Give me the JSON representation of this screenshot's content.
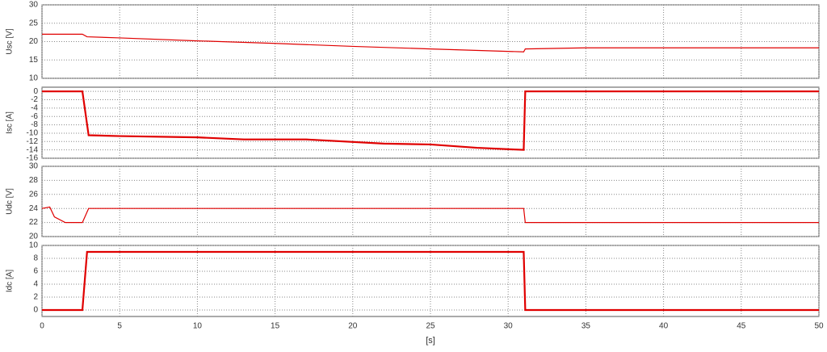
{
  "chart_data": [
    {
      "type": "line",
      "ylabel": "Usc [V]",
      "xlim": [
        0,
        50
      ],
      "xticks": [
        0,
        5,
        10,
        15,
        20,
        25,
        30,
        35,
        40,
        45,
        50
      ],
      "ylim": [
        10,
        30
      ],
      "yticks": [
        10,
        15,
        20,
        25,
        30
      ],
      "grid": true,
      "x": [
        0,
        2.6,
        2.9,
        5,
        10,
        15,
        20,
        25,
        31,
        31.1,
        35,
        50
      ],
      "series": [
        {
          "name": "Usc",
          "color": "#e00000",
          "values": [
            22,
            22,
            21.3,
            21,
            20.2,
            19.5,
            18.7,
            18,
            17.2,
            18,
            18.3,
            18.3
          ]
        }
      ]
    },
    {
      "type": "line",
      "ylabel": "Isc [A]",
      "xlim": [
        0,
        50
      ],
      "xticks": [
        0,
        5,
        10,
        15,
        20,
        25,
        30,
        35,
        40,
        45,
        50
      ],
      "ylim": [
        -16,
        1
      ],
      "yticks": [
        0,
        -2,
        -4,
        -6,
        -8,
        -10,
        -12,
        -14,
        -16
      ],
      "grid": true,
      "x": [
        0,
        2.6,
        3,
        5,
        10,
        13,
        17,
        22,
        25,
        28,
        31,
        31.1,
        50
      ],
      "series": [
        {
          "name": "Isc",
          "color": "#e00000",
          "values": [
            0,
            0,
            -10.5,
            -10.7,
            -11,
            -11.5,
            -11.5,
            -12.5,
            -12.7,
            -13.5,
            -14,
            0,
            0
          ]
        }
      ]
    },
    {
      "type": "line",
      "ylabel": "Udc [V]",
      "xlim": [
        0,
        50
      ],
      "xticks": [
        0,
        5,
        10,
        15,
        20,
        25,
        30,
        35,
        40,
        45,
        50
      ],
      "ylim": [
        20,
        30
      ],
      "yticks": [
        20,
        22,
        24,
        26,
        28,
        30
      ],
      "grid": true,
      "x": [
        0,
        0.5,
        0.8,
        1.5,
        2.6,
        3,
        31,
        31.1,
        50
      ],
      "series": [
        {
          "name": "Udc",
          "color": "#e00000",
          "values": [
            24,
            24.2,
            22.8,
            22,
            22,
            24,
            24,
            22,
            22
          ]
        }
      ]
    },
    {
      "type": "line",
      "ylabel": "Idc [A]",
      "xlabel": "[s]",
      "xlim": [
        0,
        50
      ],
      "xticks": [
        0,
        5,
        10,
        15,
        20,
        25,
        30,
        35,
        40,
        45,
        50
      ],
      "ylim": [
        -1,
        10
      ],
      "yticks": [
        0,
        2,
        4,
        6,
        8,
        10
      ],
      "grid": true,
      "x": [
        0,
        2.6,
        2.9,
        31,
        31.1,
        50
      ],
      "series": [
        {
          "name": "Idc",
          "color": "#e00000",
          "values": [
            0,
            0,
            9,
            9,
            0,
            0
          ]
        }
      ]
    }
  ]
}
